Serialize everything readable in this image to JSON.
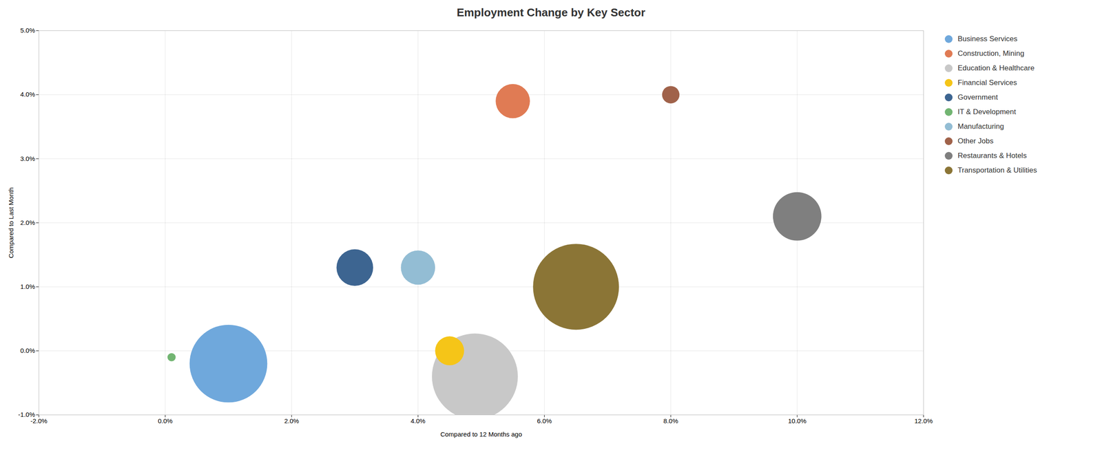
{
  "chart_data": {
    "type": "scatter",
    "title": "Employment Change by Key Sector",
    "xlabel": "Compared to 12 Months ago",
    "ylabel": "Compared to Last Month",
    "xlim": [
      -0.02,
      0.12
    ],
    "ylim": [
      -0.01,
      0.05
    ],
    "xticks": [
      {
        "value": -0.02,
        "label": "-2.0%"
      },
      {
        "value": 0.0,
        "label": "0.0%"
      },
      {
        "value": 0.02,
        "label": "2.0%"
      },
      {
        "value": 0.04,
        "label": "4.0%"
      },
      {
        "value": 0.06,
        "label": "6.0%"
      },
      {
        "value": 0.08,
        "label": "8.0%"
      },
      {
        "value": 0.1,
        "label": "10.0%"
      },
      {
        "value": 0.12,
        "label": "12.0%"
      }
    ],
    "yticks": [
      {
        "value": -0.01,
        "label": "-1.0%"
      },
      {
        "value": 0.0,
        "label": "0.0%"
      },
      {
        "value": 0.01,
        "label": "1.0%"
      },
      {
        "value": 0.02,
        "label": "2.0%"
      },
      {
        "value": 0.03,
        "label": "3.0%"
      },
      {
        "value": 0.04,
        "label": "4.0%"
      },
      {
        "value": 0.05,
        "label": "5.0%"
      }
    ],
    "grid": true,
    "legend": "right",
    "series": [
      {
        "name": "Business Services",
        "color": "#6FA8DC",
        "x": [
          0.01
        ],
        "y": [
          -0.002
        ],
        "size": [
          18000
        ]
      },
      {
        "name": "Construction, Mining",
        "color": "#E07B54",
        "x": [
          0.055
        ],
        "y": [
          0.039
        ],
        "size": [
          3500
        ]
      },
      {
        "name": "Education & Healthcare",
        "color": "#C8C8C8",
        "x": [
          0.049
        ],
        "y": [
          -0.004
        ],
        "size": [
          22000
        ]
      },
      {
        "name": "Financial Services",
        "color": "#F5C518",
        "x": [
          0.045
        ],
        "y": [
          0.0
        ],
        "size": [
          2500
        ]
      },
      {
        "name": "Government",
        "color": "#3D6591",
        "x": [
          0.03
        ],
        "y": [
          0.013
        ],
        "size": [
          4000
        ]
      },
      {
        "name": "IT & Development",
        "color": "#72B572",
        "x": [
          0.001
        ],
        "y": [
          -0.001
        ],
        "size": [
          200
        ]
      },
      {
        "name": "Manufacturing",
        "color": "#93BDD4",
        "x": [
          0.04
        ],
        "y": [
          0.013
        ],
        "size": [
          3500
        ]
      },
      {
        "name": "Other Jobs",
        "color": "#A0624A",
        "x": [
          0.08
        ],
        "y": [
          0.04
        ],
        "size": [
          900
        ]
      },
      {
        "name": "Restaurants & Hotels",
        "color": "#7F7F7F",
        "x": [
          0.1
        ],
        "y": [
          0.021
        ],
        "size": [
          7000
        ]
      },
      {
        "name": "Transportation & Utilities",
        "color": "#8B7536",
        "x": [
          0.065
        ],
        "y": [
          0.01
        ],
        "size": [
          22000
        ]
      }
    ]
  }
}
